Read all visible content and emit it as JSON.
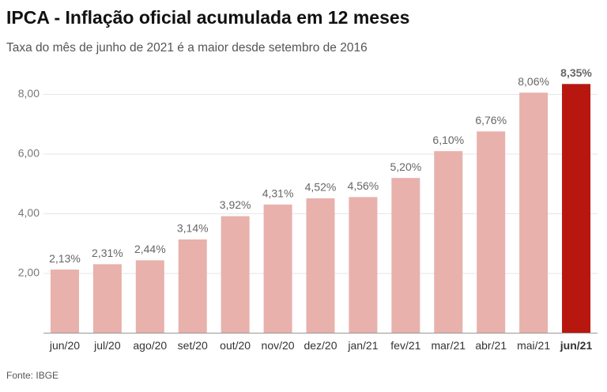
{
  "chart_data": {
    "type": "bar",
    "title": "IPCA - Inflação oficial acumulada em 12 meses",
    "subtitle": "Taxa do mês de junho de 2021 é a maior desde setembro de 2016",
    "source": "Fonte: IBGE",
    "categories": [
      "jun/20",
      "jul/20",
      "ago/20",
      "set/20",
      "out/20",
      "nov/20",
      "dez/20",
      "jan/21",
      "fev/21",
      "mar/21",
      "abr/21",
      "mai/21",
      "jun/21"
    ],
    "values": [
      2.13,
      2.31,
      2.44,
      3.14,
      3.92,
      4.31,
      4.52,
      4.56,
      5.2,
      6.1,
      6.76,
      8.06,
      8.35
    ],
    "value_labels": [
      "2,13%",
      "2,31%",
      "2,44%",
      "3,14%",
      "3,92%",
      "4,31%",
      "4,52%",
      "4,56%",
      "5,20%",
      "6,10%",
      "6,76%",
      "8,06%",
      "8,35%"
    ],
    "colors": [
      "#e8b1ac",
      "#e8b1ac",
      "#e8b1ac",
      "#e8b1ac",
      "#e8b1ac",
      "#e8b1ac",
      "#e8b1ac",
      "#e8b1ac",
      "#e8b1ac",
      "#e8b1ac",
      "#e8b1ac",
      "#e8b1ac",
      "#b8170f"
    ],
    "ylim": [
      0,
      9
    ],
    "yticks": [
      {
        "value": 2,
        "label": "2,00"
      },
      {
        "value": 4,
        "label": "4,00"
      },
      {
        "value": 6,
        "label": "6,00"
      },
      {
        "value": 8,
        "label": "8,00"
      }
    ],
    "grid": true
  }
}
